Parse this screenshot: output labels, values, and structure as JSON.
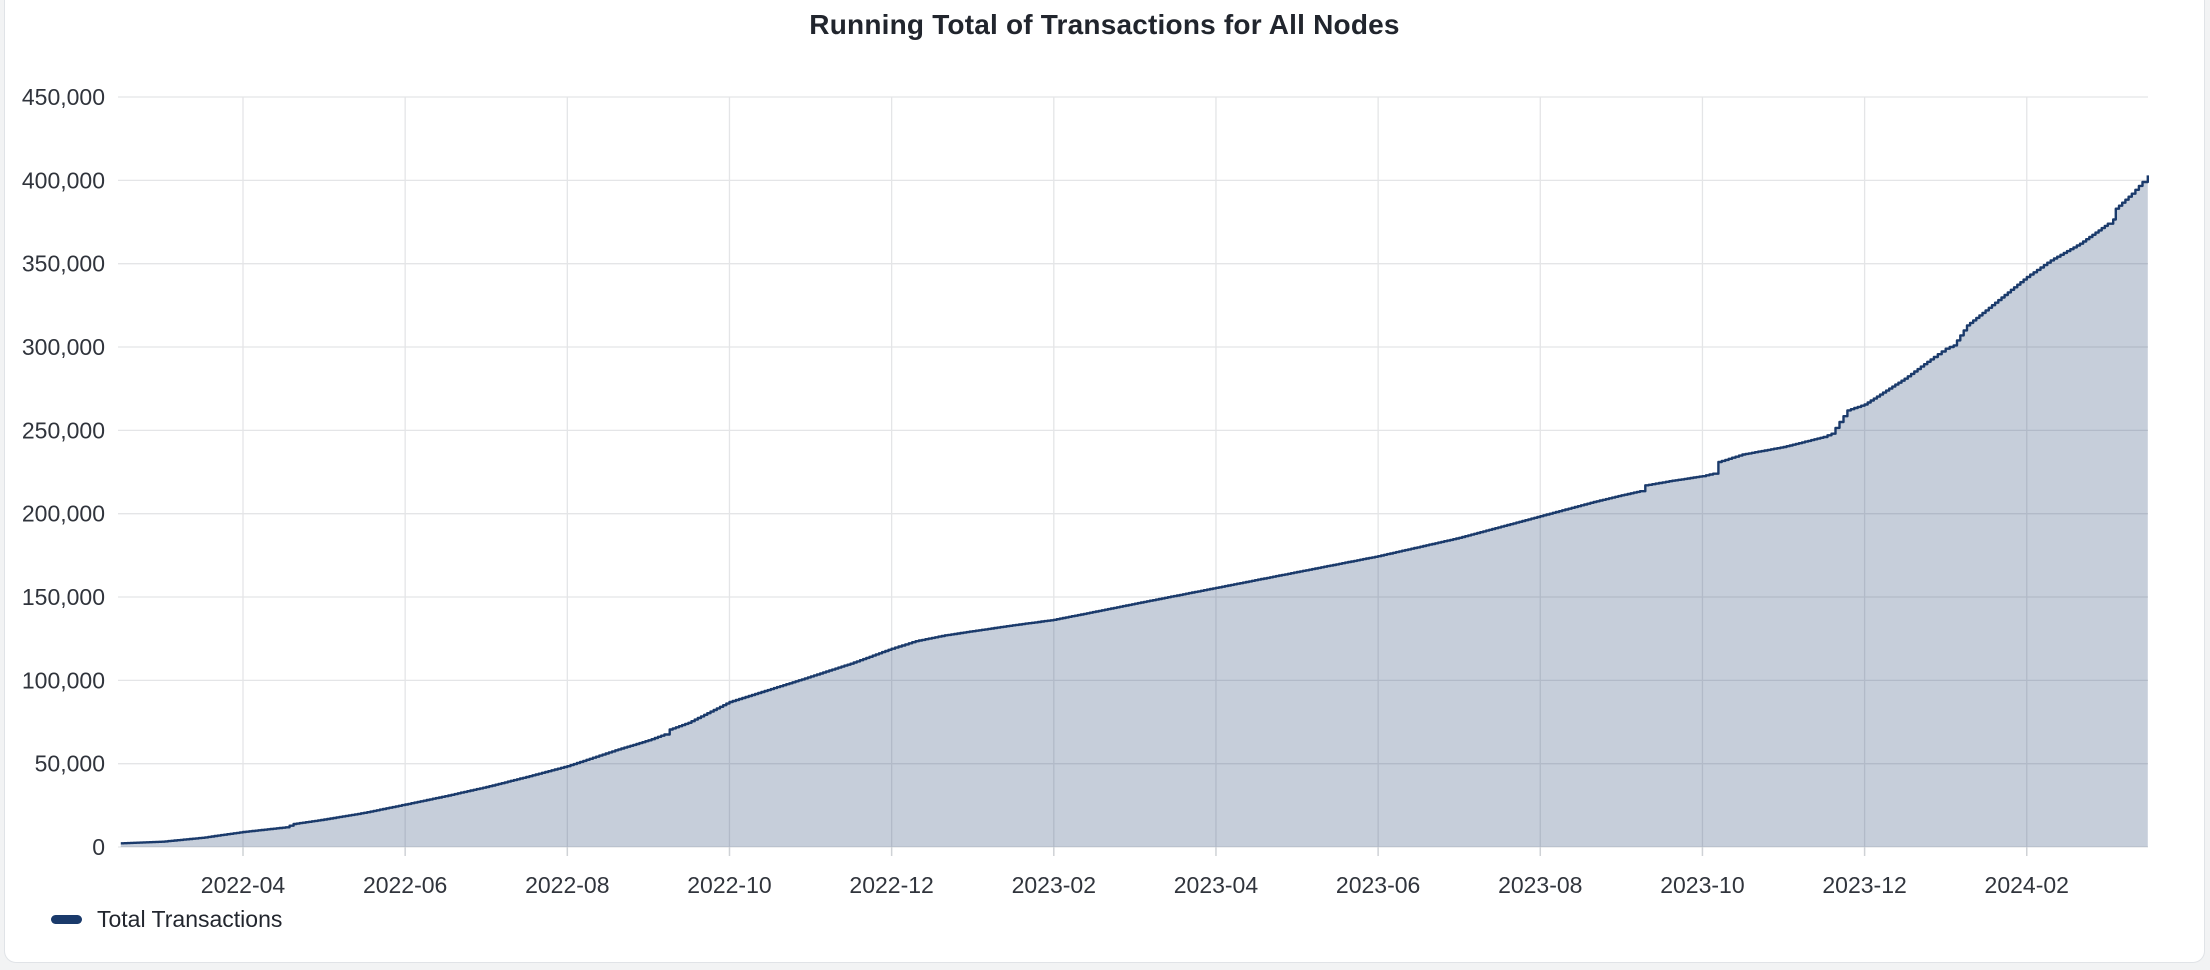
{
  "chart": {
    "colors": {
      "line": "#1a3a6b",
      "fill": "rgba(26,58,107,0.25)",
      "grid": "#e4e5e7",
      "tick": "#cfd2d6",
      "axis_label": "#30343c",
      "title": "#21252d"
    }
  },
  "chart_data": {
    "type": "area",
    "title": "Running Total of Transactions for All Nodes",
    "xlabel": "",
    "ylabel": "",
    "grid": true,
    "legend_position": "bottom-left",
    "x_range": [
      "2022-02-16",
      "2024-03-16"
    ],
    "y_range": [
      0,
      450000
    ],
    "x_ticks": [
      {
        "month": "2022-04",
        "label": "2022-04"
      },
      {
        "month": "2022-06",
        "label": "2022-06"
      },
      {
        "month": "2022-08",
        "label": "2022-08"
      },
      {
        "month": "2022-10",
        "label": "2022-10"
      },
      {
        "month": "2022-12",
        "label": "2022-12"
      },
      {
        "month": "2023-02",
        "label": "2023-02"
      },
      {
        "month": "2023-04",
        "label": "2023-04"
      },
      {
        "month": "2023-06",
        "label": "2023-06"
      },
      {
        "month": "2023-08",
        "label": "2023-08"
      },
      {
        "month": "2023-10",
        "label": "2023-10"
      },
      {
        "month": "2023-12",
        "label": "2023-12"
      },
      {
        "month": "2024-02",
        "label": "2024-02"
      }
    ],
    "y_ticks": [
      {
        "value": 0,
        "label": "0"
      },
      {
        "value": 50000,
        "label": "50,000"
      },
      {
        "value": 100000,
        "label": "100,000"
      },
      {
        "value": 150000,
        "label": "150,000"
      },
      {
        "value": 200000,
        "label": "200,000"
      },
      {
        "value": 250000,
        "label": "250,000"
      },
      {
        "value": 300000,
        "label": "300,000"
      },
      {
        "value": 350000,
        "label": "350,000"
      },
      {
        "value": 400000,
        "label": "400,000"
      },
      {
        "value": 450000,
        "label": "450,000"
      }
    ],
    "series": [
      {
        "name": "Total Transactions",
        "color": "#1a3a6b",
        "points": [
          [
            "2022-02-16",
            2200
          ],
          [
            "2022-03-01",
            3200
          ],
          [
            "2022-03-16",
            5500
          ],
          [
            "2022-04-01",
            9000
          ],
          [
            "2022-04-17",
            11800
          ],
          [
            "2022-04-20",
            13800
          ],
          [
            "2022-05-01",
            16500
          ],
          [
            "2022-05-16",
            20500
          ],
          [
            "2022-06-01",
            25500
          ],
          [
            "2022-06-16",
            30500
          ],
          [
            "2022-07-01",
            36000
          ],
          [
            "2022-07-16",
            42000
          ],
          [
            "2022-08-01",
            48500
          ],
          [
            "2022-08-19",
            58000
          ],
          [
            "2022-09-01",
            64000
          ],
          [
            "2022-09-07",
            67500
          ],
          [
            "2022-09-09",
            70500
          ],
          [
            "2022-09-16",
            74500
          ],
          [
            "2022-10-01",
            87000
          ],
          [
            "2022-10-13",
            93000
          ],
          [
            "2022-10-27",
            100000
          ],
          [
            "2022-11-16",
            110000
          ],
          [
            "2022-12-01",
            119000
          ],
          [
            "2022-12-10",
            123500
          ],
          [
            "2022-12-21",
            127000
          ],
          [
            "2023-01-01",
            129500
          ],
          [
            "2023-01-16",
            133000
          ],
          [
            "2023-02-01",
            136300
          ],
          [
            "2023-03-01",
            146000
          ],
          [
            "2023-04-01",
            155500
          ],
          [
            "2023-05-01",
            165000
          ],
          [
            "2023-06-01",
            174500
          ],
          [
            "2023-07-01",
            185500
          ],
          [
            "2023-08-01",
            198500
          ],
          [
            "2023-08-21",
            207000
          ],
          [
            "2023-09-01",
            211000
          ],
          [
            "2023-09-08",
            213500
          ],
          [
            "2023-09-10",
            217000
          ],
          [
            "2023-09-19",
            219500
          ],
          [
            "2023-10-01",
            222500
          ],
          [
            "2023-10-05",
            224000
          ],
          [
            "2023-10-07",
            231000
          ],
          [
            "2023-10-16",
            235500
          ],
          [
            "2023-11-01",
            240000
          ],
          [
            "2023-11-16",
            246000
          ],
          [
            "2023-11-19",
            248000
          ],
          [
            "2023-11-22",
            255000
          ],
          [
            "2023-11-25",
            262000
          ],
          [
            "2023-12-01",
            265500
          ],
          [
            "2023-12-16",
            281000
          ],
          [
            "2023-12-27",
            294000
          ],
          [
            "2024-01-01",
            299000
          ],
          [
            "2024-01-04",
            301000
          ],
          [
            "2024-01-09",
            313000
          ],
          [
            "2024-01-16",
            322000
          ],
          [
            "2024-02-01",
            342000
          ],
          [
            "2024-02-10",
            352000
          ],
          [
            "2024-02-21",
            362000
          ],
          [
            "2024-03-01",
            374000
          ],
          [
            "2024-03-03",
            376500
          ],
          [
            "2024-03-04",
            383000
          ],
          [
            "2024-03-10",
            392000
          ],
          [
            "2024-03-14",
            399000
          ],
          [
            "2024-03-16",
            403000
          ]
        ]
      }
    ]
  }
}
